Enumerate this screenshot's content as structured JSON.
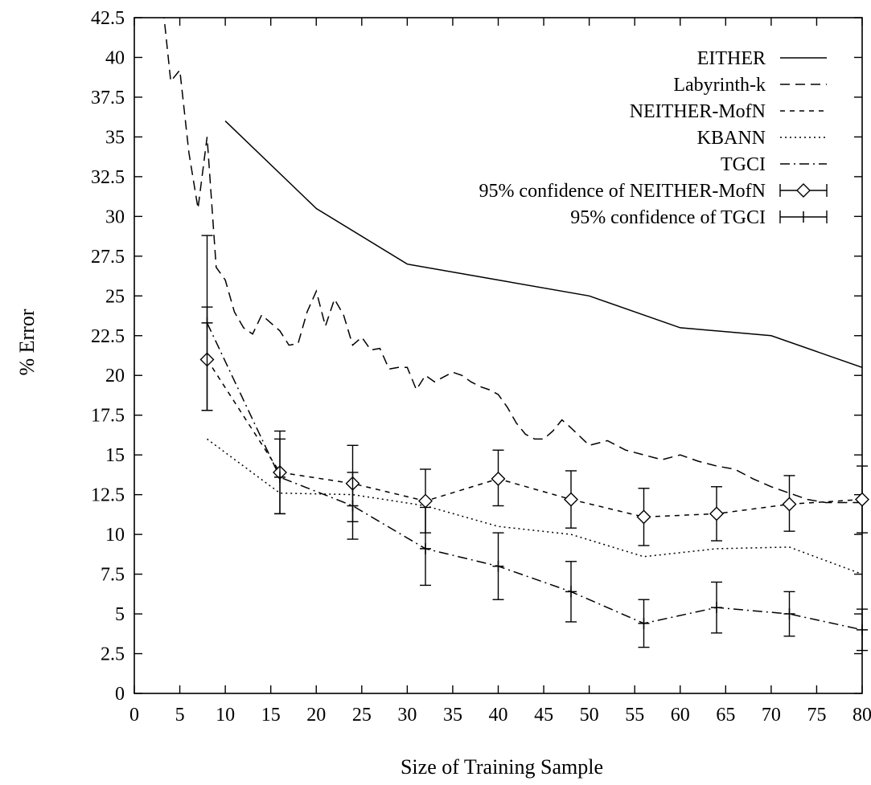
{
  "chart_data": {
    "type": "line",
    "xlabel": "Size of Training Sample",
    "ylabel": "% Error",
    "xlim": [
      0,
      80
    ],
    "ylim": [
      0,
      42.5
    ],
    "xticks": [
      "0",
      "5",
      "10",
      "15",
      "20",
      "25",
      "30",
      "35",
      "40",
      "45",
      "50",
      "55",
      "60",
      "65",
      "70",
      "75",
      "80"
    ],
    "yticks": [
      "0",
      "2.5",
      "5",
      "7.5",
      "10",
      "12.5",
      "15",
      "17.5",
      "20",
      "22.5",
      "25",
      "27.5",
      "30",
      "32.5",
      "35",
      "37.5",
      "40",
      "42.5"
    ],
    "grid": false,
    "legend_position": "top-right",
    "series": [
      {
        "name": "EITHER",
        "style": "solid",
        "x": [
          10,
          20,
          30,
          40,
          50,
          60,
          70,
          80
        ],
        "y": [
          36.0,
          30.5,
          27.0,
          26.0,
          25.0,
          23.0,
          22.5,
          20.5
        ]
      },
      {
        "name": "Labyrinth-k",
        "style": "dashed",
        "x": [
          3,
          4,
          5,
          6,
          7,
          8,
          9,
          10,
          11,
          12,
          13,
          14,
          15,
          16,
          17,
          18,
          19,
          20,
          21,
          22,
          23,
          24,
          25,
          26,
          27,
          28,
          29,
          30,
          31,
          32,
          33,
          34,
          35,
          36,
          37,
          38,
          39,
          40,
          41,
          42,
          43,
          44,
          45,
          46,
          47,
          48,
          50,
          52,
          54,
          56,
          58,
          60,
          62,
          64,
          66,
          68,
          70,
          72,
          74,
          76,
          78,
          80
        ],
        "y": [
          44.0,
          38.5,
          39.2,
          34.0,
          30.5,
          35.0,
          26.8,
          26.0,
          24.0,
          23.0,
          22.6,
          23.8,
          23.3,
          22.8,
          21.9,
          22.0,
          24.0,
          25.3,
          23.1,
          24.8,
          23.8,
          21.9,
          22.4,
          21.6,
          21.7,
          20.4,
          20.5,
          20.5,
          19.1,
          20.0,
          19.6,
          19.9,
          20.2,
          20.0,
          19.6,
          19.3,
          19.1,
          18.8,
          18.0,
          17.0,
          16.3,
          16.0,
          16.0,
          16.5,
          17.2,
          16.7,
          15.6,
          15.9,
          15.3,
          15.0,
          14.7,
          15.0,
          14.6,
          14.3,
          14.1,
          13.5,
          13.0,
          12.6,
          12.2,
          12.0,
          12.0,
          12.0
        ]
      },
      {
        "name": "NEITHER-MofN",
        "style": "short-dashed",
        "marker": "diamond",
        "x": [
          8,
          16,
          24,
          32,
          40,
          48,
          56,
          64,
          72,
          80
        ],
        "y": [
          21.0,
          13.9,
          13.2,
          12.1,
          13.5,
          12.2,
          11.1,
          11.3,
          11.9,
          12.2
        ],
        "err_low": [
          17.8,
          11.3,
          10.8,
          10.1,
          11.8,
          10.4,
          9.3,
          9.6,
          10.2,
          10.1
        ],
        "err_high": [
          24.3,
          16.5,
          15.6,
          14.1,
          15.3,
          14.0,
          12.9,
          13.0,
          13.7,
          14.3
        ]
      },
      {
        "name": "KBANN",
        "style": "dotted",
        "x": [
          8,
          16,
          24,
          32,
          40,
          48,
          56,
          64,
          72,
          80
        ],
        "y": [
          16.0,
          12.6,
          12.5,
          11.8,
          10.5,
          10.0,
          8.6,
          9.1,
          9.2,
          7.5
        ]
      },
      {
        "name": "TGCI",
        "style": "dash-dot",
        "marker": "plus",
        "x": [
          8,
          16,
          24,
          32,
          40,
          48,
          56,
          64,
          72,
          80
        ],
        "y": [
          23.3,
          13.6,
          11.8,
          9.1,
          8.0,
          6.4,
          4.4,
          5.4,
          5.0,
          4.0
        ],
        "err_low": [
          17.8,
          11.3,
          9.7,
          6.8,
          5.9,
          4.5,
          2.9,
          3.8,
          3.6,
          2.7
        ],
        "err_high": [
          28.8,
          16.0,
          13.9,
          11.7,
          10.1,
          8.3,
          5.9,
          7.0,
          6.4,
          5.3
        ]
      }
    ],
    "legend": [
      {
        "label": "EITHER",
        "kind": "solid"
      },
      {
        "label": "Labyrinth-k",
        "kind": "dashed"
      },
      {
        "label": "NEITHER-MofN",
        "kind": "short-dashed"
      },
      {
        "label": "KBANN",
        "kind": "dotted"
      },
      {
        "label": "TGCI",
        "kind": "dash-dot"
      },
      {
        "label": "95% confidence of NEITHER-MofN",
        "kind": "errorbar-diamond"
      },
      {
        "label": "95% confidence of TGCI",
        "kind": "errorbar-plus"
      }
    ]
  }
}
